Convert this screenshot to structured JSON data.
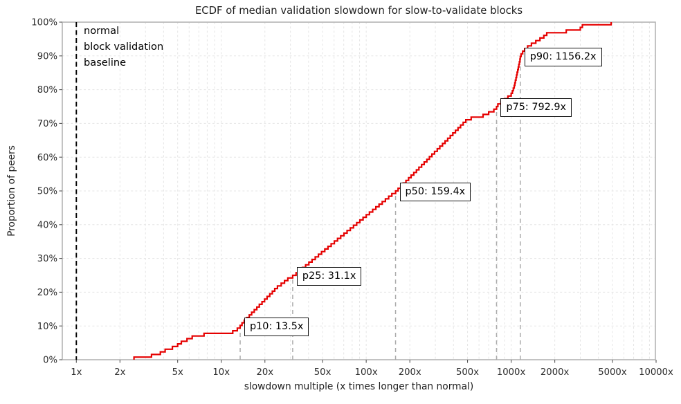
{
  "chart_data": {
    "type": "line",
    "subtype": "ecdf-step",
    "title": "ECDF of median validation slowdown for slow-to-validate blocks",
    "xlabel": "slowdown multiple (x times longer than normal)",
    "ylabel": "Proportion of peers",
    "x_scale": "log",
    "xlim": [
      0.8,
      9890
    ],
    "ylim": [
      0,
      100
    ],
    "grid": true,
    "legend": false,
    "x_ticks": [
      {
        "value": 1,
        "label": "1x"
      },
      {
        "value": 2,
        "label": "2x"
      },
      {
        "value": 5,
        "label": "5x"
      },
      {
        "value": 10,
        "label": "10x"
      },
      {
        "value": 20,
        "label": "20x"
      },
      {
        "value": 50,
        "label": "50x"
      },
      {
        "value": 100,
        "label": "100x"
      },
      {
        "value": 200,
        "label": "200x"
      },
      {
        "value": 500,
        "label": "500x"
      },
      {
        "value": 1000,
        "label": "1000x"
      },
      {
        "value": 2000,
        "label": "2000x"
      },
      {
        "value": 5000,
        "label": "5000x"
      },
      {
        "value": 10000,
        "label": "10000x"
      }
    ],
    "y_ticks": [
      {
        "value": 0,
        "label": "0%"
      },
      {
        "value": 10,
        "label": "10%"
      },
      {
        "value": 20,
        "label": "20%"
      },
      {
        "value": 30,
        "label": "30%"
      },
      {
        "value": 40,
        "label": "40%"
      },
      {
        "value": 50,
        "label": "50%"
      },
      {
        "value": 60,
        "label": "60%"
      },
      {
        "value": 70,
        "label": "70%"
      },
      {
        "value": 80,
        "label": "80%"
      },
      {
        "value": 90,
        "label": "90%"
      },
      {
        "value": 100,
        "label": "100%"
      }
    ],
    "baseline": {
      "x": 1,
      "lines": [
        "normal",
        "block validation",
        "baseline"
      ]
    },
    "percentiles": [
      {
        "name": "p10",
        "value": 13.5,
        "pct": 10,
        "label": "p10: 13.5x"
      },
      {
        "name": "p25",
        "value": 31.1,
        "pct": 25,
        "label": "p25: 31.1x"
      },
      {
        "name": "p50",
        "value": 159.4,
        "pct": 50,
        "label": "p50: 159.4x"
      },
      {
        "name": "p75",
        "value": 792.9,
        "pct": 75,
        "label": "p75: 792.9x"
      },
      {
        "name": "p90",
        "value": 1156.2,
        "pct": 90,
        "label": "p90: 1156.2x"
      }
    ],
    "ecdf_values": [
      2.5,
      3.3,
      3.8,
      4.1,
      4.6,
      5.0,
      5.3,
      5.8,
      6.3,
      7.6,
      12.0,
      12.9,
      13.5,
      13.9,
      14.4,
      15.0,
      15.6,
      16.2,
      16.9,
      17.6,
      18.3,
      19.1,
      19.9,
      20.7,
      21.6,
      22.5,
      23.4,
      24.4,
      25.9,
      27.3,
      28.8,
      31.1,
      32.8,
      34.5,
      36.3,
      38.2,
      40.2,
      42.3,
      44.5,
      46.8,
      49.2,
      51.8,
      54.5,
      57.3,
      60.3,
      63.4,
      66.7,
      70.2,
      73.8,
      77.7,
      81.7,
      86.0,
      90.4,
      95.1,
      100.1,
      105.3,
      110.8,
      116.6,
      122.6,
      129.0,
      135.7,
      142.8,
      150.2,
      159.4,
      166,
      173,
      180,
      188,
      196,
      204,
      213,
      222,
      231,
      241,
      251,
      262,
      273,
      284,
      296,
      309,
      322,
      336,
      350,
      365,
      380,
      396,
      413,
      430,
      448,
      467,
      487,
      530,
      640,
      700,
      760,
      792.9,
      810,
      850,
      900,
      950,
      1000,
      1020,
      1035,
      1050,
      1060,
      1070,
      1080,
      1090,
      1100,
      1110,
      1120,
      1130,
      1140,
      1150,
      1156.2,
      1170,
      1200,
      1240,
      1300,
      1380,
      1480,
      1580,
      1680,
      1760,
      2400,
      3000,
      3100,
      4900
    ],
    "colors": {
      "ecdf_line": "#e50000",
      "baseline_line": "#000000",
      "percentile_line": "#ababab",
      "grid": "#e5e5e5",
      "spine": "#b4b4b4",
      "text": "#1f1f1f",
      "box_bg": "#ffffff",
      "box_border": "#111111"
    }
  }
}
